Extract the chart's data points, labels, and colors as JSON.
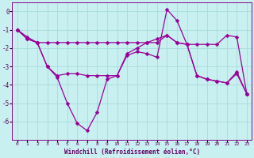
{
  "x": [
    0,
    1,
    2,
    3,
    4,
    5,
    6,
    7,
    8,
    9,
    10,
    11,
    12,
    13,
    14,
    15,
    16,
    17,
    18,
    19,
    20,
    21,
    22,
    23
  ],
  "line_top": [
    -1.0,
    -1.4,
    -1.7,
    -1.7,
    -1.7,
    -1.7,
    -1.7,
    -1.7,
    -1.7,
    -1.7,
    -1.7,
    -1.7,
    -1.7,
    -1.7,
    -1.7,
    -1.3,
    -1.7,
    -1.8,
    -1.8,
    -1.8,
    -1.8,
    -1.3,
    -1.4,
    -4.5
  ],
  "line_mid": [
    -1.0,
    -1.5,
    -1.7,
    -3.0,
    -3.5,
    -3.4,
    -3.4,
    -3.5,
    -3.5,
    -3.5,
    -3.5,
    -2.3,
    -2.0,
    -1.7,
    -1.5,
    -1.3,
    -1.7,
    -1.8,
    -3.5,
    -3.7,
    -3.8,
    -3.9,
    -3.4,
    -4.5
  ],
  "line_bot": [
    -1.0,
    -1.5,
    -1.7,
    -3.0,
    -3.6,
    -5.0,
    -6.1,
    -6.5,
    -5.5,
    -3.7,
    -3.5,
    -2.4,
    -2.2,
    -2.3,
    -2.5,
    0.1,
    -0.5,
    -1.8,
    -3.5,
    -3.7,
    -3.8,
    -3.9,
    -3.3,
    -4.5
  ],
  "bg_color": "#c8f0f0",
  "line_color": "#990099",
  "grid_color": "#a8dada",
  "xlabel": "Windchill (Refroidissement éolien,°C)",
  "ylim": [
    -7,
    0.5
  ],
  "yticks": [
    0,
    -1,
    -2,
    -3,
    -4,
    -5,
    -6
  ]
}
